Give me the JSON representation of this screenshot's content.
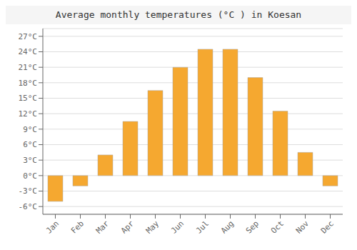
{
  "chart_data": {
    "type": "bar",
    "title": "Average monthly temperatures (°C ) in Koesan",
    "categories": [
      "Jan",
      "Feb",
      "Mar",
      "Apr",
      "May",
      "Jun",
      "Jul",
      "Aug",
      "Sep",
      "Oct",
      "Nov",
      "Dec"
    ],
    "values": [
      -5.0,
      -2.0,
      4.0,
      10.5,
      16.5,
      21.0,
      24.5,
      24.5,
      19.0,
      12.5,
      4.5,
      -2.0
    ],
    "color": "#F5A830",
    "ylim": [
      -7.5,
      28.5
    ],
    "yticks": [
      {
        "value": -6,
        "label": "-6°C"
      },
      {
        "value": -3,
        "label": "-3°C"
      },
      {
        "value": 0,
        "label": "0°C"
      },
      {
        "value": 3,
        "label": "3°C"
      },
      {
        "value": 6,
        "label": "6°C"
      },
      {
        "value": 9,
        "label": "9°C"
      },
      {
        "value": 12,
        "label": "12°C"
      },
      {
        "value": 15,
        "label": "15°C"
      },
      {
        "value": 18,
        "label": "18°C"
      },
      {
        "value": 21,
        "label": "21°C"
      },
      {
        "value": 24,
        "label": "24°C"
      },
      {
        "value": 27,
        "label": "27°C"
      }
    ],
    "grid": true
  }
}
